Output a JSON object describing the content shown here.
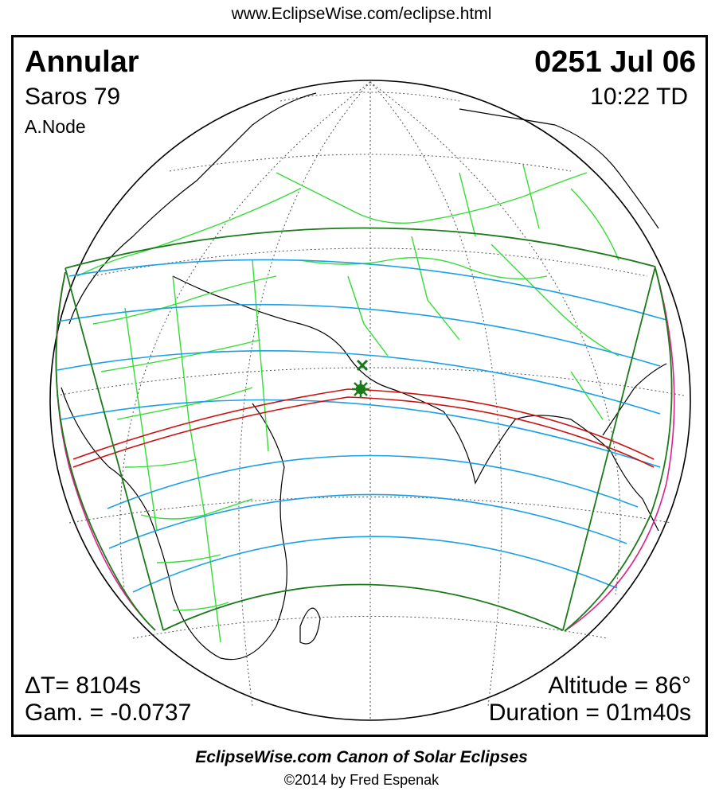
{
  "header_url": "www.EclipseWise.com/eclipse.html",
  "eclipse": {
    "type": "Annular",
    "date": "0251 Jul 06",
    "saros": "Saros  79",
    "time": "10:22 TD",
    "node": "A.Node",
    "delta_t": "ΔT=   8104s",
    "gamma": "Gam. = -0.0737",
    "altitude": "Altitude = 86°",
    "duration": "Duration = 01m40s"
  },
  "footer": {
    "title": "EclipseWise.com Canon of Solar Eclipses",
    "copyright": "©2014 by Fred Espenak"
  },
  "colors": {
    "border": "#1a7a1a",
    "countries": "#33dd33",
    "coast": "#000000",
    "contours": "#1aa0e6",
    "central_path": "#cc1111",
    "limits": "#e0208a",
    "grid": "#555555"
  }
}
